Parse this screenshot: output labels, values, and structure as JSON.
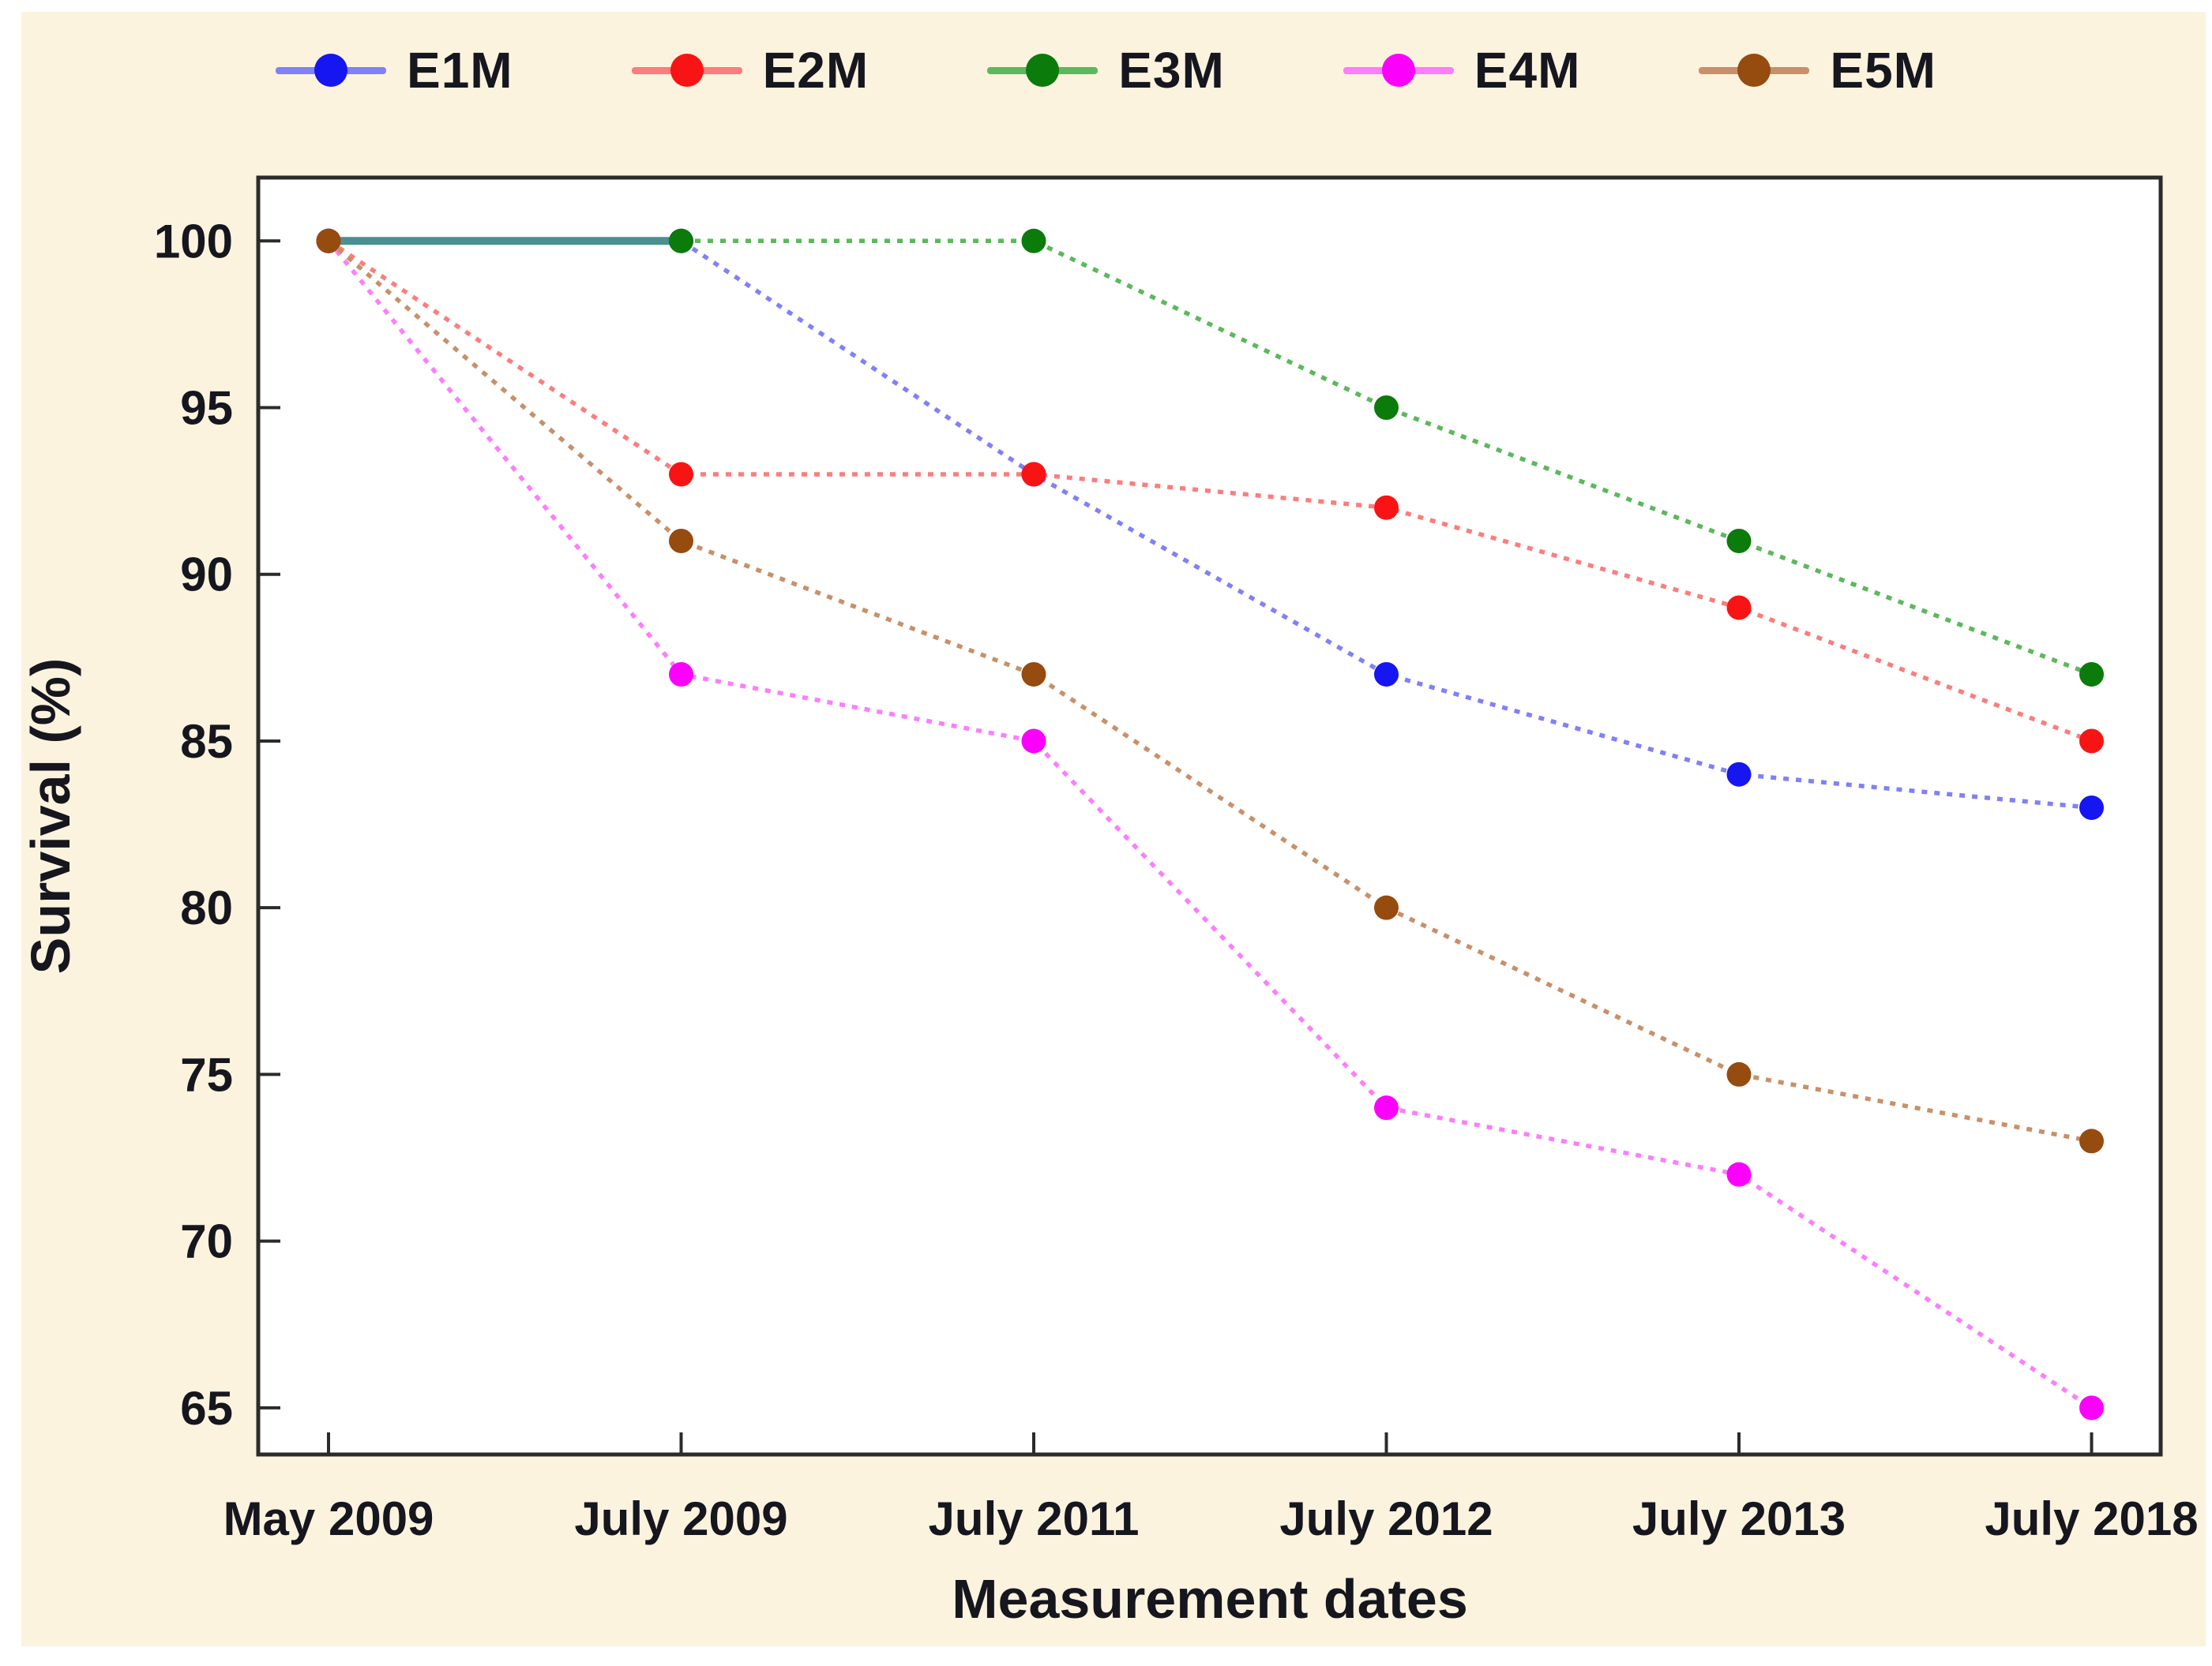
{
  "figure": {
    "title": "",
    "note": ""
  },
  "colors": {
    "background": "#fbf3de",
    "plot_background": "#ffffff",
    "frame": "#2b2b2b",
    "text": "#16161f",
    "overlap_teal": "#4a9090"
  },
  "chart_data": {
    "type": "line",
    "title": "",
    "xlabel": "Measurement dates",
    "ylabel": "Survival (%)",
    "categories": [
      "May 2009",
      "July 2009",
      "July 2011",
      "July 2012",
      "July 2013",
      "July 2018"
    ],
    "series": [
      {
        "name": "E1M",
        "marker_color": "#1616f0",
        "line_color": "#8080f8",
        "values": [
          100,
          100,
          93,
          87,
          84,
          83
        ]
      },
      {
        "name": "E2M",
        "marker_color": "#f81414",
        "line_color": "#fb7d7d",
        "values": [
          100,
          93,
          93,
          92,
          89,
          85
        ]
      },
      {
        "name": "E3M",
        "marker_color": "#0b7b0b",
        "line_color": "#5cb85c",
        "values": [
          100,
          100,
          100,
          95,
          91,
          87
        ]
      },
      {
        "name": "E4M",
        "marker_color": "#fb00fb",
        "line_color": "#fd7dfd",
        "values": [
          100,
          87,
          85,
          74,
          72,
          65
        ]
      },
      {
        "name": "E5M",
        "marker_color": "#964b0f",
        "line_color": "#c8906a",
        "values": [
          100,
          91,
          87,
          80,
          75,
          73
        ]
      }
    ],
    "yticks": [
      100,
      95,
      90,
      85,
      80,
      75,
      70,
      65
    ],
    "ylim": [
      63.6,
      101.9
    ],
    "grid": false,
    "legend_position": "top",
    "overlap_segment": {
      "color": "#4a9090",
      "from_category": 0,
      "to_category": 1,
      "value": 100
    }
  }
}
